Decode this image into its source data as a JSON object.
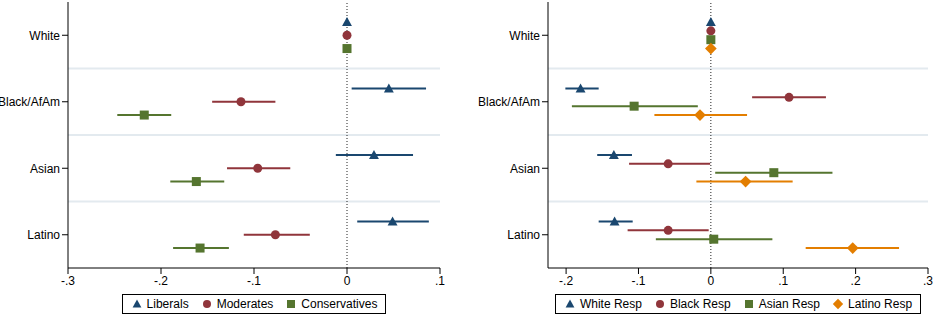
{
  "chart_data": [
    {
      "type": "scatter",
      "orientation": "horizontal",
      "legend": "bottom",
      "categories": [
        "White",
        "Black/AfAm",
        "Asian",
        "Latino"
      ],
      "xlim": [
        -0.3,
        0.1
      ],
      "xticks": [
        {
          "value": -0.3,
          "label": "-.3"
        },
        {
          "value": -0.2,
          "label": "-.2"
        },
        {
          "value": -0.1,
          "label": "-.1"
        },
        0,
        {
          "value": 0.1,
          "label": ".1"
        }
      ],
      "reference_line": 0,
      "series": [
        {
          "name": "Liberals",
          "color": "#1a476f",
          "marker": "triangle",
          "values": [
            0,
            0.045,
            0.029,
            0.049
          ],
          "ci_low": [
            null,
            0.005,
            -0.012,
            0.011
          ],
          "ci_high": [
            null,
            0.085,
            0.071,
            0.088
          ]
        },
        {
          "name": "Moderates",
          "color": "#90353b",
          "marker": "circle",
          "values": [
            0,
            -0.114,
            -0.096,
            -0.077
          ],
          "ci_low": [
            null,
            -0.145,
            -0.129,
            -0.111
          ],
          "ci_high": [
            null,
            -0.077,
            -0.061,
            -0.04
          ]
        },
        {
          "name": "Conservatives",
          "color": "#55752f",
          "marker": "square",
          "values": [
            0,
            -0.218,
            -0.162,
            -0.158
          ],
          "ci_low": [
            null,
            -0.247,
            -0.19,
            -0.187
          ],
          "ci_high": [
            null,
            -0.189,
            -0.132,
            -0.127
          ]
        }
      ]
    },
    {
      "type": "scatter",
      "orientation": "horizontal",
      "legend": "bottom",
      "categories": [
        "White",
        "Black/AfAm",
        "Asian",
        "Latino"
      ],
      "xlim": [
        -0.225,
        0.3
      ],
      "xticks": [
        {
          "value": -0.2,
          "label": "-.2"
        },
        {
          "value": -0.1,
          "label": "-.1"
        },
        0,
        {
          "value": 0.1,
          "label": ".1"
        },
        {
          "value": 0.2,
          "label": ".2"
        },
        {
          "value": 0.3,
          "label": ".3"
        }
      ],
      "reference_line": 0,
      "series": [
        {
          "name": "White Resp",
          "color": "#1a476f",
          "marker": "triangle",
          "values": [
            0,
            -0.18,
            -0.134,
            -0.133
          ],
          "ci_low": [
            null,
            -0.201,
            -0.157,
            -0.155
          ],
          "ci_high": [
            null,
            -0.155,
            -0.109,
            -0.108
          ]
        },
        {
          "name": "Black Resp",
          "color": "#90353b",
          "marker": "circle",
          "values": [
            0,
            0.108,
            -0.059,
            -0.059
          ],
          "ci_low": [
            null,
            0.057,
            -0.113,
            -0.115
          ],
          "ci_high": [
            null,
            0.159,
            -0.001,
            -0.003
          ]
        },
        {
          "name": "Asian Resp",
          "color": "#55752f",
          "marker": "square",
          "values": [
            0,
            -0.106,
            0.087,
            0.004
          ],
          "ci_low": [
            null,
            -0.192,
            0.006,
            -0.076
          ],
          "ci_high": [
            null,
            -0.018,
            0.168,
            0.085
          ]
        },
        {
          "name": "Latino Resp",
          "color": "#e37e00",
          "marker": "diamond",
          "values": [
            0,
            -0.015,
            0.048,
            0.196
          ],
          "ci_low": [
            null,
            -0.078,
            -0.02,
            0.131
          ],
          "ci_high": [
            null,
            0.05,
            0.113,
            0.26
          ]
        }
      ]
    }
  ]
}
